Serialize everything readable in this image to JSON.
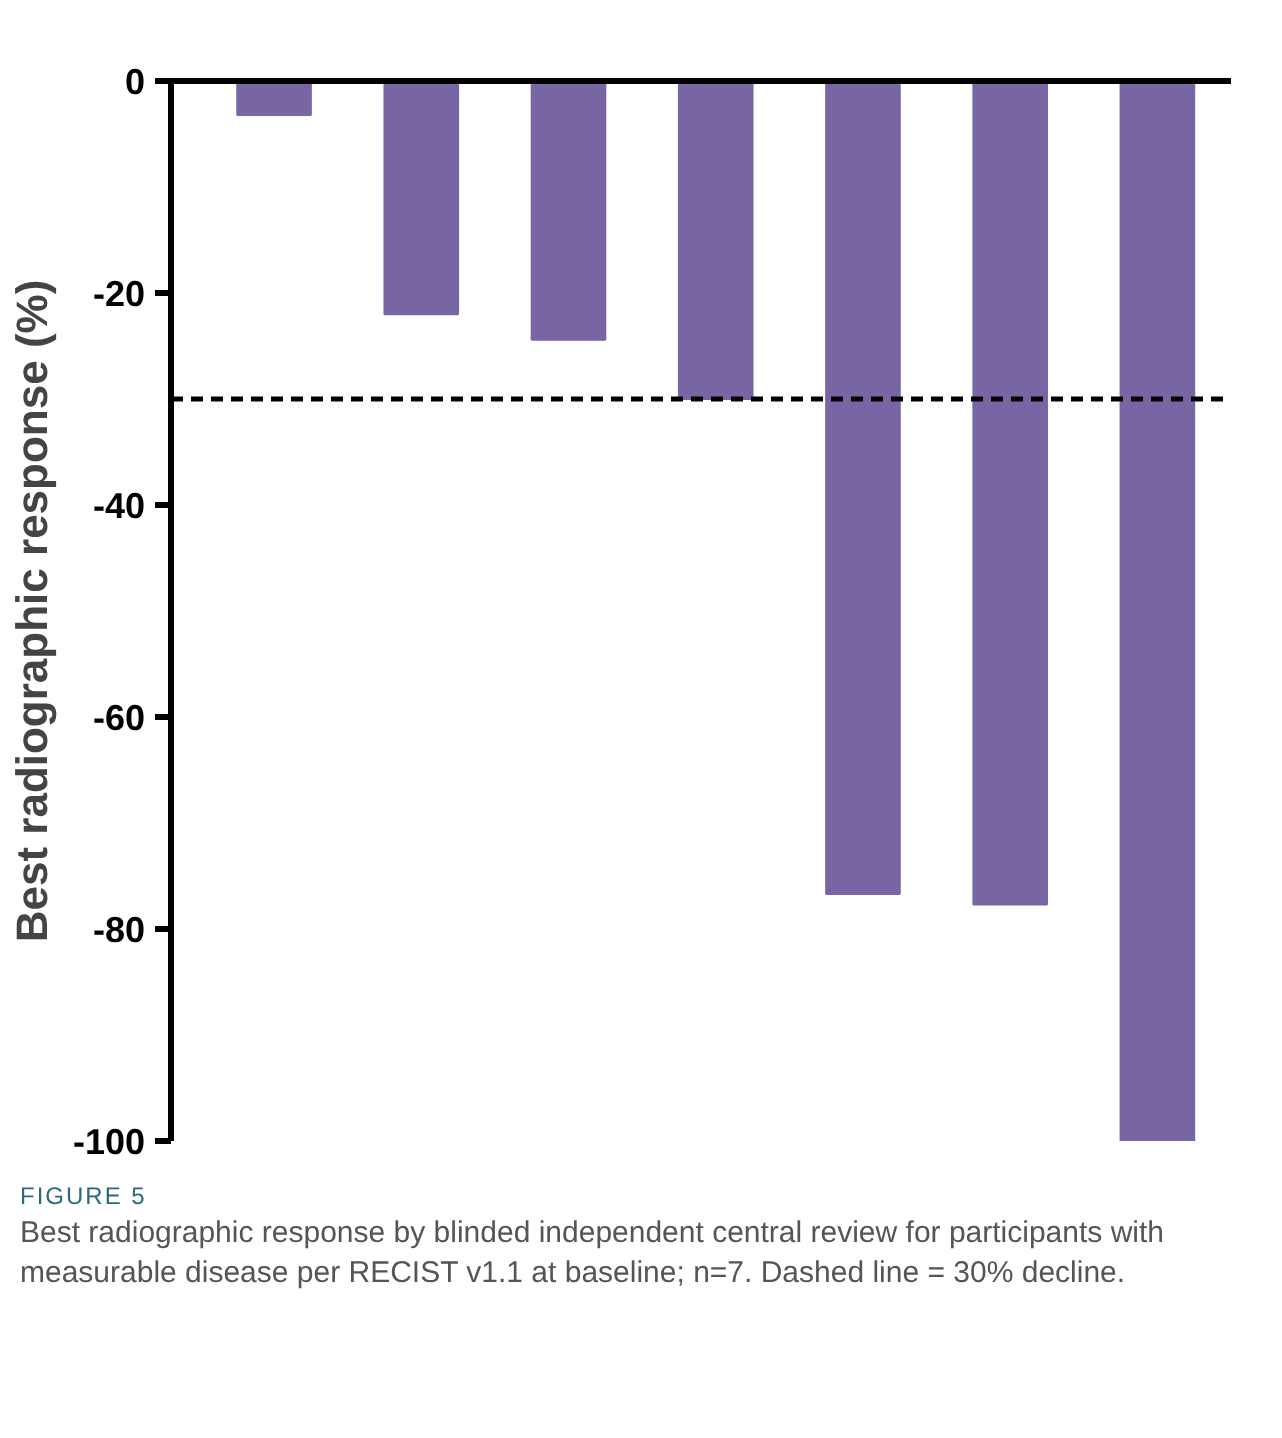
{
  "chart_data": {
    "type": "bar",
    "ylabel": "Best radiographic response (%)",
    "categories": [
      null,
      null,
      null,
      null,
      null,
      null,
      null
    ],
    "values": [
      -3.2,
      -22,
      -24.4,
      -30,
      -76.7,
      -77.7,
      -100
    ],
    "color": "#7866a4",
    "ylim": [
      -100,
      0
    ],
    "yticks": [
      -100,
      -80,
      -60,
      -40,
      -20,
      0
    ],
    "grid": false,
    "tick_labels": "y",
    "ref_lines": [
      {
        "axis": "y",
        "value": -30,
        "line_style": "dashed",
        "color": "#000000"
      }
    ],
    "annotations": [
      "FIGURE 5",
      "Best radiographic response by blinded independent central review for participants with measurable disease per RECIST v1.1 at baseline; n=7. Dashed line = 30% decline."
    ]
  }
}
